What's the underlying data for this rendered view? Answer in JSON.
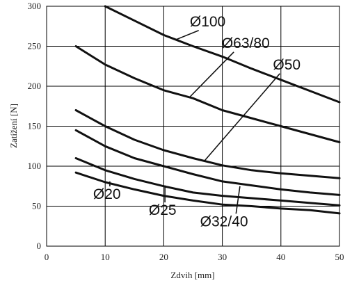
{
  "chart_data": {
    "type": "line",
    "xlabel": "Zdvih [mm]",
    "ylabel": "Zatížení [N]",
    "xlim": [
      0,
      50
    ],
    "ylim": [
      0,
      300
    ],
    "xticks": [
      0,
      10,
      20,
      30,
      40,
      50
    ],
    "yticks": [
      0,
      50,
      100,
      150,
      200,
      250,
      300
    ],
    "grid": true,
    "series": [
      {
        "name": "Ø100",
        "x": [
          10,
          15,
          20,
          25,
          30,
          35,
          40,
          45,
          50
        ],
        "y": [
          300,
          282,
          264,
          250,
          237,
          222,
          208,
          194,
          180
        ]
      },
      {
        "name": "Ø63/80",
        "x": [
          5,
          10,
          15,
          20,
          25,
          30,
          35,
          40,
          45,
          50
        ],
        "y": [
          250,
          227,
          210,
          195,
          185,
          170,
          160,
          150,
          140,
          130
        ]
      },
      {
        "name": "Ø50",
        "x": [
          5,
          10,
          15,
          20,
          25,
          30,
          35,
          40,
          45,
          50
        ],
        "y": [
          170,
          150,
          133,
          120,
          110,
          101,
          95,
          91,
          88,
          85
        ]
      },
      {
        "name": "Ø32/40",
        "x": [
          5,
          10,
          15,
          20,
          25,
          30,
          35,
          40,
          45,
          50
        ],
        "y": [
          145,
          125,
          110,
          100,
          90,
          81,
          76,
          71,
          67,
          64
        ]
      },
      {
        "name": "Ø25",
        "x": [
          5,
          10,
          15,
          20,
          25,
          30,
          35,
          40,
          45,
          50
        ],
        "y": [
          110,
          95,
          84,
          75,
          67,
          63,
          60,
          57,
          54,
          51
        ]
      },
      {
        "name": "Ø20",
        "x": [
          5,
          10,
          15,
          20,
          25,
          30,
          35,
          40,
          45,
          50
        ],
        "y": [
          92,
          80,
          71,
          63,
          57,
          52,
          50,
          47,
          45,
          41
        ]
      }
    ],
    "annotations": [
      {
        "text": "Ø100",
        "label_at": [
          27.5,
          275
        ],
        "arrow_to": [
          22,
          258
        ]
      },
      {
        "text": "Ø63/80",
        "label_at": [
          34,
          248
        ],
        "arrow_to": [
          24.5,
          187
        ]
      },
      {
        "text": "Ø50",
        "label_at": [
          41,
          221
        ],
        "arrow_to": [
          27,
          107
        ]
      },
      {
        "text": "Ø32/40",
        "label_at": [
          30.3,
          25
        ],
        "arrow_to": [
          33,
          75
        ]
      },
      {
        "text": "Ø25",
        "label_at": [
          19.8,
          39
        ],
        "arrow_to": [
          20.2,
          76
        ]
      },
      {
        "text": "Ø20",
        "label_at": [
          10.3,
          59
        ],
        "arrow_to": [
          10.8,
          81
        ]
      }
    ]
  }
}
